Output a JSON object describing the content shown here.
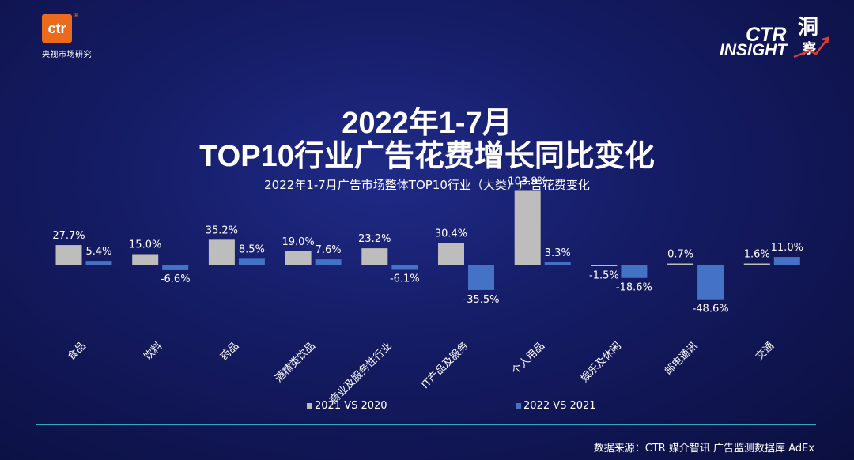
{
  "logo_left": {
    "mark": "ctr",
    "reg": "®",
    "subtitle": "央视市场研究"
  },
  "logo_right": {
    "word1": "CTR",
    "word2": "INSIGHT",
    "char1": "洞",
    "char2": "察"
  },
  "title_line1": "2022年1-7月",
  "title_line2": "TOP10行业广告花费增长同比变化",
  "chart_data": {
    "type": "bar",
    "title": "2022年1-7月广告市场整体TOP10行业（大类）广告花费变化",
    "categories": [
      "食品",
      "饮料",
      "药品",
      "酒精类饮品",
      "商业及服务性行业",
      "IT产品及服务",
      "个人用品",
      "娱乐及休闲",
      "邮电通讯",
      "交通"
    ],
    "series": [
      {
        "name": "2021 VS 2020",
        "color": "#bdbdbd",
        "values": [
          27.7,
          15.0,
          35.2,
          19.0,
          23.2,
          30.4,
          103.9,
          -1.5,
          0.7,
          1.6
        ],
        "labels": [
          "27.7%",
          "15.0%",
          "35.2%",
          "19.0%",
          "23.2%",
          "30.4%",
          "103.9%",
          "-1.5%",
          "0.7%",
          "1.6%"
        ]
      },
      {
        "name": "2022 VS 2021",
        "color": "#4472c4",
        "values": [
          5.4,
          -6.6,
          8.5,
          7.6,
          -6.1,
          -35.5,
          3.3,
          -18.6,
          -48.6,
          11.0
        ],
        "labels": [
          "5.4%",
          "-6.6%",
          "8.5%",
          "7.6%",
          "-6.1%",
          "-35.5%",
          "3.3%",
          "-18.6%",
          "-48.6%",
          "11.0%"
        ]
      }
    ],
    "legend": "bottom",
    "grid": false
  },
  "source": "数据来源：CTR 媒介智讯  广告监测数据库 AdEx",
  "colors": {
    "line_teal": "#2fa7c9",
    "line_light": "#8fb9dd",
    "accent_orange": "#ec6a1c"
  }
}
